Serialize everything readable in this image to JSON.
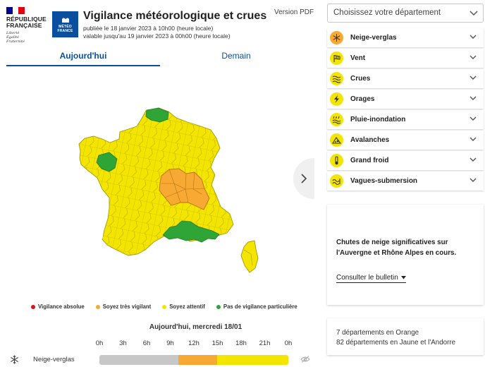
{
  "header": {
    "gov_name_line1": "RÉPUBLIQUE",
    "gov_name_line2": "FRANÇAISE",
    "gov_motto": [
      "Liberté",
      "Égalité",
      "Fraternité"
    ],
    "meteo_logo_line1": "MÉTÉO",
    "meteo_logo_line2": "FRANCE",
    "title": "Vigilance météorologique et crues",
    "published": "publiée le 18 janvier 2023 à 10h00 (heure locale)",
    "valid": "valable jusqu'au 19 janvier 2023 à 00h00 (heure locale)",
    "pdf_link": "Version PDF"
  },
  "tabs": {
    "today": "Aujourd'hui",
    "tomorrow": "Demain",
    "active": "today"
  },
  "legend": [
    {
      "label": "Vigilance absolue",
      "color": "#d5141a"
    },
    {
      "label": "Soyez très vigilant",
      "color": "#f7a934"
    },
    {
      "label": "Soyez attentif",
      "color": "#f4e500"
    },
    {
      "label": "Pas de vigilance particulière",
      "color": "#2fa537"
    }
  ],
  "timeline": {
    "title": "Aujourd'hui, mercredi 18/01",
    "hours": [
      "0h",
      "3h",
      "6h",
      "9h",
      "12h",
      "15h",
      "18h",
      "21h",
      "0h"
    ],
    "phenomenon": "Neige-verglas",
    "segments": [
      {
        "level": "none",
        "color": "#c7c7c7",
        "from_hour": 0,
        "to_hour": 10
      },
      {
        "level": "orange",
        "color": "#f7a934",
        "from_hour": 10,
        "to_hour": 15
      },
      {
        "level": "yellow",
        "color": "#f4e500",
        "from_hour": 15,
        "to_hour": 24
      }
    ]
  },
  "sidebar": {
    "select_placeholder": "Choisissez votre département",
    "phenomena": [
      {
        "label": "Neige-verglas",
        "icon": "snow-ice-icon",
        "color": "#f7a934"
      },
      {
        "label": "Vent",
        "icon": "wind-icon",
        "color": "#f4e500"
      },
      {
        "label": "Crues",
        "icon": "flood-icon",
        "color": "#f4e500"
      },
      {
        "label": "Orages",
        "icon": "storm-icon",
        "color": "#f4e500"
      },
      {
        "label": "Pluie-inondation",
        "icon": "rain-flood-icon",
        "color": "#f4e500"
      },
      {
        "label": "Avalanches",
        "icon": "avalanche-icon",
        "color": "#f4e500"
      },
      {
        "label": "Grand froid",
        "icon": "extreme-cold-icon",
        "color": "#f4e500"
      },
      {
        "label": "Vagues-submersion",
        "icon": "waves-submersion-icon",
        "color": "#f4e500"
      }
    ],
    "info_text": "Chutes de neige significatives sur l'Auvergne et Rhône Alpes en cours.",
    "info_link": "Consulter le bulletin",
    "counts": [
      "7 départements en Orange",
      "82 départements en Jaune et l'Andorre"
    ]
  },
  "map": {
    "colors": {
      "yellow": "#f4e500",
      "orange": "#f7a934",
      "green": "#2fa537",
      "border": "#a39a00"
    }
  }
}
